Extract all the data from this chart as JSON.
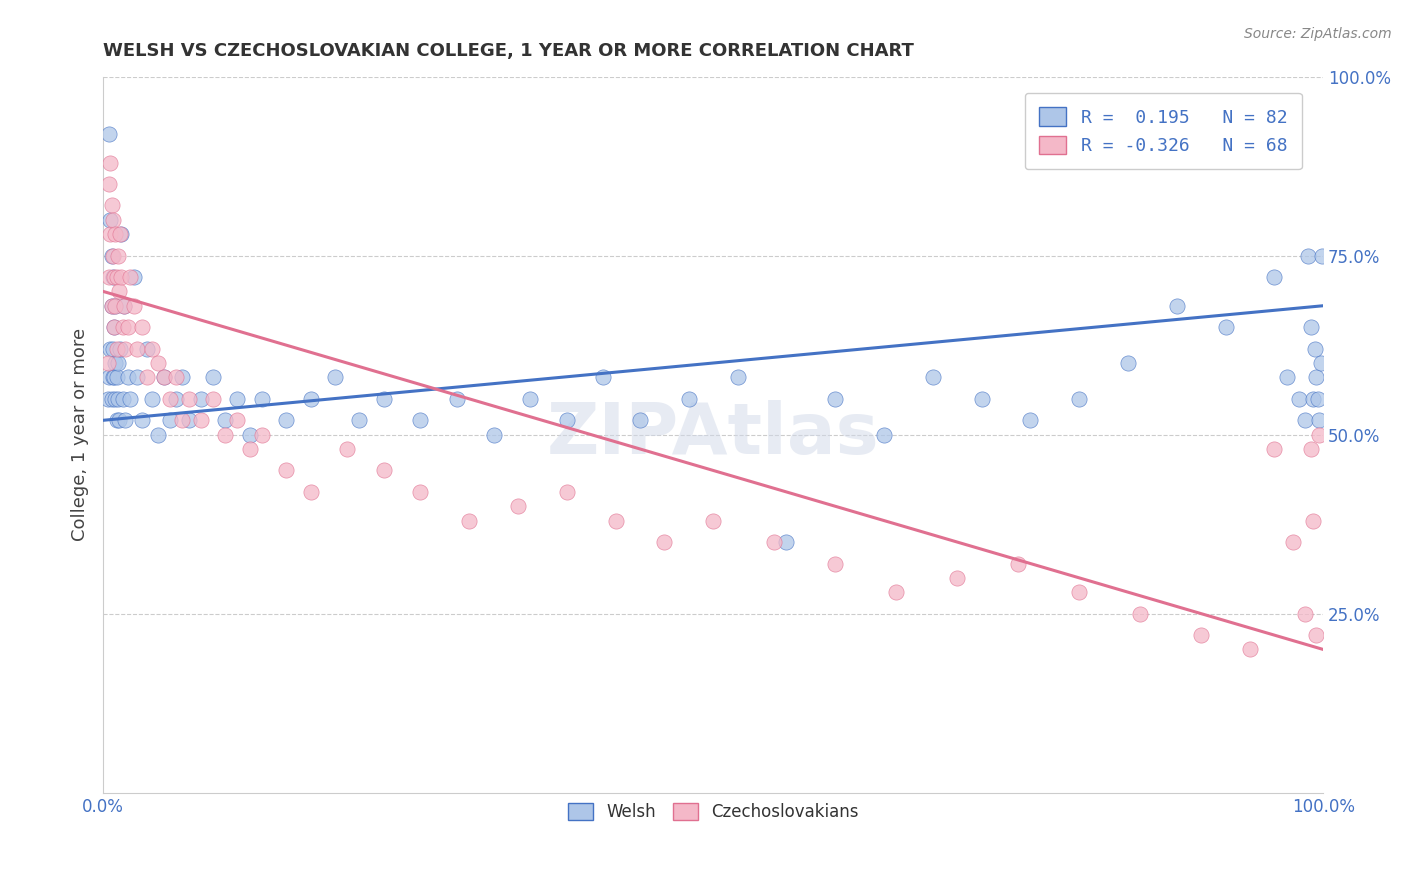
{
  "title": "WELSH VS CZECHOSLOVAKIAN COLLEGE, 1 YEAR OR MORE CORRELATION CHART",
  "source": "Source: ZipAtlas.com",
  "ylabel": "College, 1 year or more",
  "xlim": [
    0.0,
    1.0
  ],
  "ylim": [
    0.0,
    1.0
  ],
  "welsh_R": 0.195,
  "welsh_N": 82,
  "czech_R": -0.326,
  "czech_N": 68,
  "welsh_color": "#aec6e8",
  "welsh_edge_color": "#4472c4",
  "welsh_line_color": "#4472c4",
  "czech_color": "#f4b8c8",
  "czech_edge_color": "#e07090",
  "czech_line_color": "#e07090",
  "tick_color": "#4472c4",
  "watermark": "ZIPAtlas",
  "legend_label_welsh": "Welsh",
  "legend_label_czech": "Czechoslovakians",
  "welsh_x": [
    0.004,
    0.005,
    0.005,
    0.006,
    0.006,
    0.007,
    0.007,
    0.007,
    0.008,
    0.008,
    0.008,
    0.009,
    0.009,
    0.01,
    0.01,
    0.01,
    0.011,
    0.011,
    0.012,
    0.012,
    0.013,
    0.014,
    0.015,
    0.016,
    0.017,
    0.018,
    0.02,
    0.022,
    0.025,
    0.028,
    0.032,
    0.036,
    0.04,
    0.045,
    0.05,
    0.055,
    0.06,
    0.065,
    0.07,
    0.08,
    0.09,
    0.1,
    0.11,
    0.12,
    0.13,
    0.15,
    0.17,
    0.19,
    0.21,
    0.23,
    0.26,
    0.29,
    0.32,
    0.35,
    0.38,
    0.41,
    0.44,
    0.48,
    0.52,
    0.56,
    0.6,
    0.64,
    0.68,
    0.72,
    0.76,
    0.8,
    0.84,
    0.88,
    0.92,
    0.96,
    0.97,
    0.98,
    0.985,
    0.988,
    0.99,
    0.992,
    0.993,
    0.994,
    0.996,
    0.997,
    0.998,
    0.999
  ],
  "welsh_y": [
    0.55,
    0.92,
    0.58,
    0.8,
    0.62,
    0.75,
    0.55,
    0.68,
    0.72,
    0.62,
    0.58,
    0.65,
    0.58,
    0.6,
    0.55,
    0.68,
    0.58,
    0.52,
    0.55,
    0.6,
    0.52,
    0.62,
    0.78,
    0.55,
    0.68,
    0.52,
    0.58,
    0.55,
    0.72,
    0.58,
    0.52,
    0.62,
    0.55,
    0.5,
    0.58,
    0.52,
    0.55,
    0.58,
    0.52,
    0.55,
    0.58,
    0.52,
    0.55,
    0.5,
    0.55,
    0.52,
    0.55,
    0.58,
    0.52,
    0.55,
    0.52,
    0.55,
    0.5,
    0.55,
    0.52,
    0.58,
    0.52,
    0.55,
    0.58,
    0.35,
    0.55,
    0.5,
    0.58,
    0.55,
    0.52,
    0.55,
    0.6,
    0.68,
    0.65,
    0.72,
    0.58,
    0.55,
    0.52,
    0.75,
    0.65,
    0.55,
    0.62,
    0.58,
    0.55,
    0.52,
    0.6,
    0.75
  ],
  "czech_x": [
    0.004,
    0.005,
    0.005,
    0.006,
    0.006,
    0.007,
    0.007,
    0.008,
    0.008,
    0.009,
    0.009,
    0.01,
    0.01,
    0.011,
    0.011,
    0.012,
    0.013,
    0.014,
    0.015,
    0.016,
    0.017,
    0.018,
    0.02,
    0.022,
    0.025,
    0.028,
    0.032,
    0.036,
    0.04,
    0.045,
    0.05,
    0.055,
    0.06,
    0.065,
    0.07,
    0.08,
    0.09,
    0.1,
    0.11,
    0.12,
    0.13,
    0.15,
    0.17,
    0.2,
    0.23,
    0.26,
    0.3,
    0.34,
    0.38,
    0.42,
    0.46,
    0.5,
    0.55,
    0.6,
    0.65,
    0.7,
    0.75,
    0.8,
    0.85,
    0.9,
    0.94,
    0.96,
    0.975,
    0.985,
    0.99,
    0.992,
    0.994,
    0.997
  ],
  "czech_y": [
    0.6,
    0.85,
    0.72,
    0.88,
    0.78,
    0.82,
    0.68,
    0.75,
    0.8,
    0.72,
    0.65,
    0.78,
    0.68,
    0.72,
    0.62,
    0.75,
    0.7,
    0.78,
    0.72,
    0.65,
    0.68,
    0.62,
    0.65,
    0.72,
    0.68,
    0.62,
    0.65,
    0.58,
    0.62,
    0.6,
    0.58,
    0.55,
    0.58,
    0.52,
    0.55,
    0.52,
    0.55,
    0.5,
    0.52,
    0.48,
    0.5,
    0.45,
    0.42,
    0.48,
    0.45,
    0.42,
    0.38,
    0.4,
    0.42,
    0.38,
    0.35,
    0.38,
    0.35,
    0.32,
    0.28,
    0.3,
    0.32,
    0.28,
    0.25,
    0.22,
    0.2,
    0.48,
    0.35,
    0.25,
    0.48,
    0.38,
    0.22,
    0.5
  ]
}
